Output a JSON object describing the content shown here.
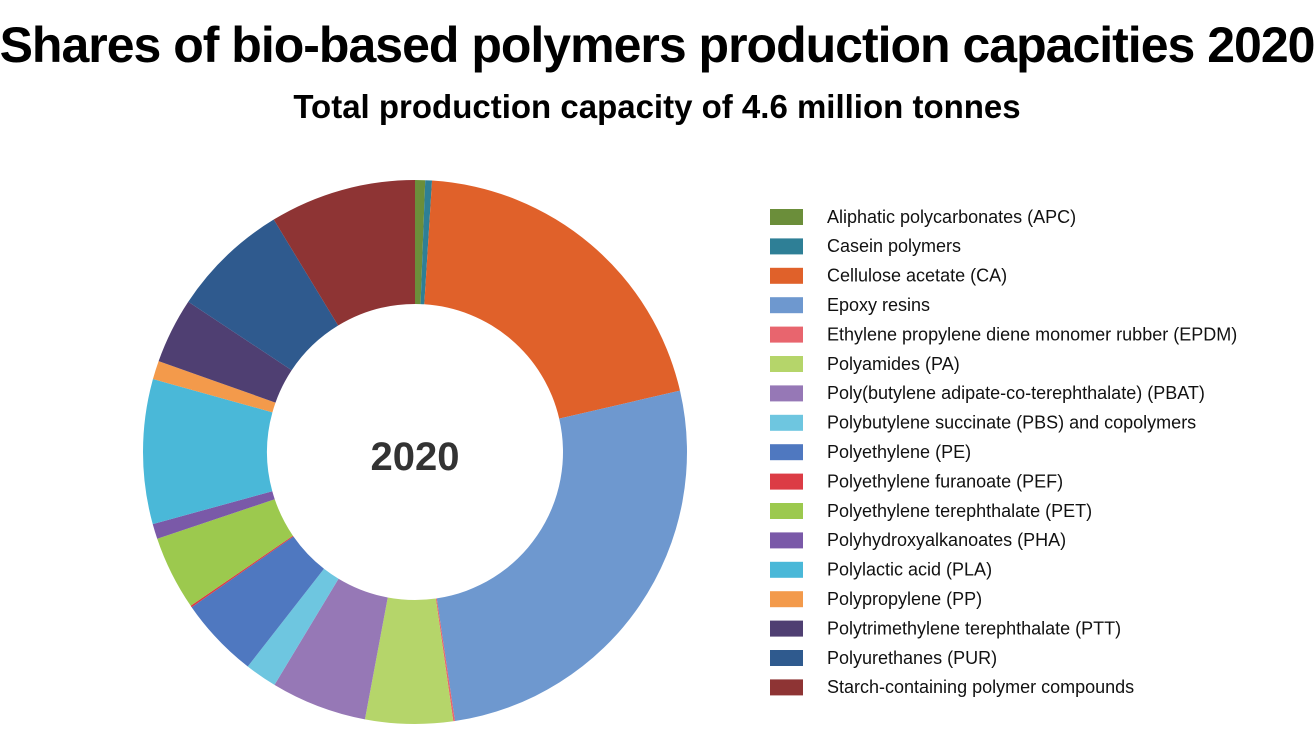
{
  "chart_data": {
    "type": "donut",
    "title": "Shares of bio-based polymers production capacities 2020",
    "subtitle": "Total production capacity of 4.6 million tonnes",
    "center_label": "2020",
    "legend": "right",
    "categories": [
      "Aliphatic polycarbonates (APC)",
      "Casein polymers",
      "Cellulose acetate (CA)",
      "Epoxy resins",
      "Ethylene propylene diene monomer rubber (EPDM)",
      "Polyamides (PA)",
      "Poly(butylene adipate-co-terephthalate) (PBAT)",
      "Polybutylene succinate (PBS) and copolymers",
      "Polyethylene (PE)",
      "Polyethylene furanoate (PEF)",
      "Polyethylene terephthalate (PET)",
      "Polyhydroxyalkanoates (PHA)",
      "Polylactic acid (PLA)",
      "Polypropylene (PP)",
      "Polytrimethylene terephthalate (PTT)",
      "Polyurethanes (PUR)",
      "Starch-containing polymer compounds"
    ],
    "values": [
      0.6,
      0.4,
      20.4,
      26.3,
      0.1,
      5.2,
      5.7,
      1.9,
      4.8,
      0.1,
      4.4,
      0.9,
      8.6,
      1.1,
      3.9,
      7.0,
      8.7
    ],
    "colors": [
      "#6b8e3a",
      "#2e7f96",
      "#e0612a",
      "#6e98cf",
      "#e8656e",
      "#b5d56a",
      "#9678b6",
      "#6ec6e0",
      "#4f78c0",
      "#dc3c45",
      "#9cc94e",
      "#7a59a8",
      "#4ab8d8",
      "#f39a4b",
      "#4f3f72",
      "#2f5a8e",
      "#8e3434"
    ]
  }
}
